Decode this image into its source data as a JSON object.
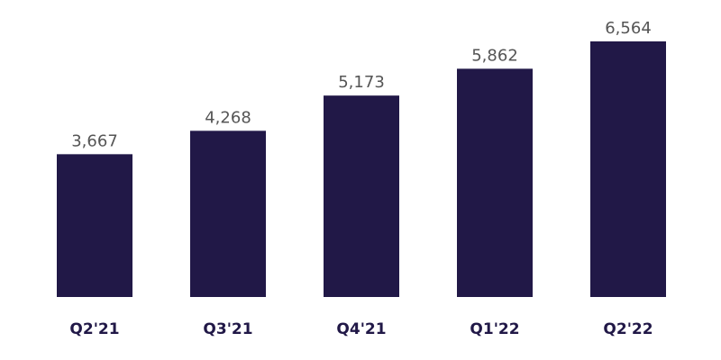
{
  "chart_data": {
    "type": "bar",
    "categories": [
      "Q2'21",
      "Q3'21",
      "Q4'21",
      "Q1'22",
      "Q2'22"
    ],
    "values": [
      3667,
      4268,
      5173,
      5862,
      6564
    ],
    "value_labels": [
      "3,667",
      "4,268",
      "5,173",
      "5,862",
      "6,564"
    ],
    "color": "#211847"
  }
}
